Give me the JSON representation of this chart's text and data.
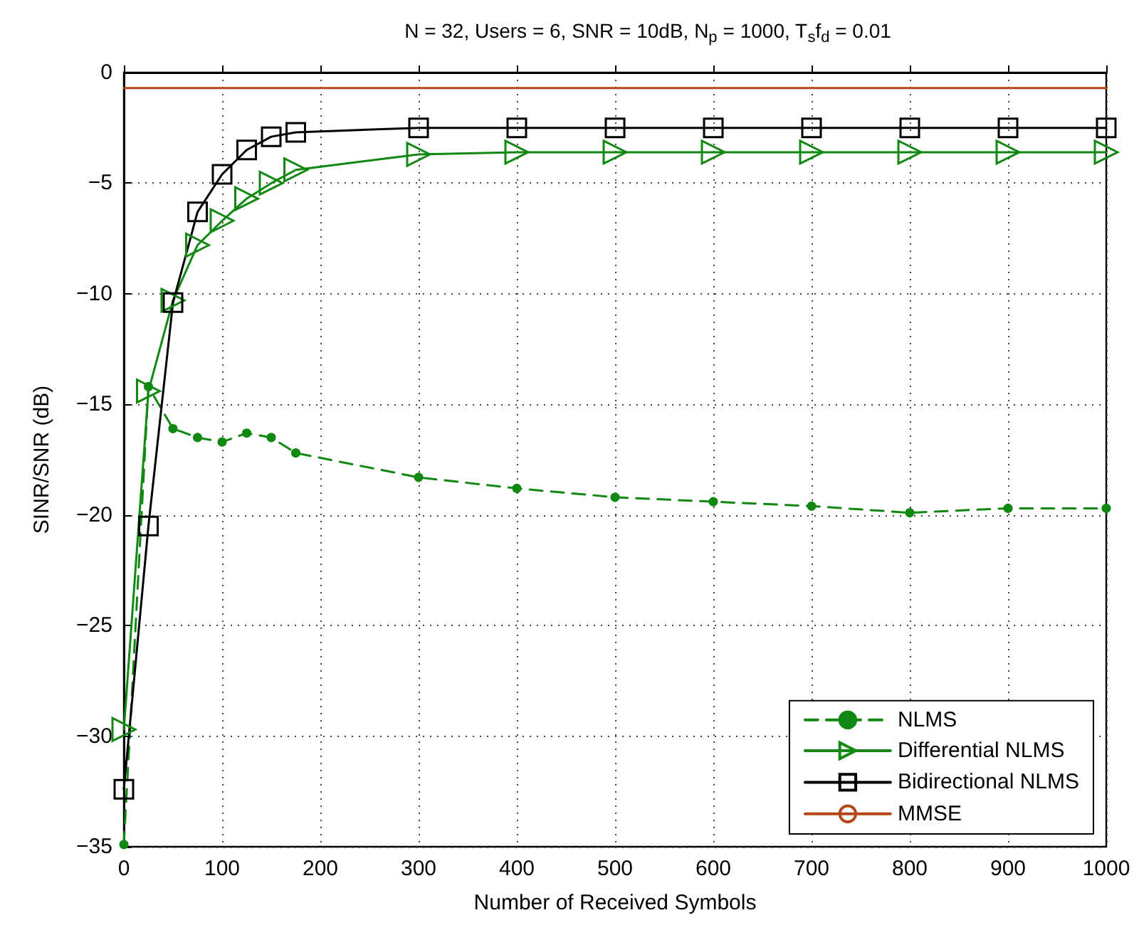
{
  "chart_data": {
    "type": "line",
    "title": "N = 32, Users = 6, SNR = 10dB, N$_{p}$ = 1000, T$_{s}$f$_{d}$ = 0.01",
    "xlabel": "Number of Received Symbols",
    "ylabel": "SINR/SNR (dB)",
    "xlim": [
      0,
      1000
    ],
    "xticks": [
      0,
      100,
      200,
      300,
      400,
      500,
      600,
      700,
      800,
      900,
      1000
    ],
    "ylim": [
      -35,
      0
    ],
    "yticks": [
      -35,
      -30,
      -25,
      -20,
      -15,
      -10,
      -5,
      0
    ],
    "grid": true,
    "legend": "bottom right",
    "series": [
      {
        "name": "NLMS",
        "color": "#118811",
        "marker": "circle",
        "line_style": "dashed",
        "x": [
          0,
          25,
          50,
          75,
          100,
          125,
          150,
          175,
          300,
          400,
          500,
          600,
          700,
          800,
          900,
          1000
        ],
        "values": [
          -34.9,
          -14.2,
          -16.1,
          -16.5,
          -16.7,
          -16.3,
          -16.5,
          -17.2,
          -18.3,
          -18.8,
          -19.2,
          -19.4,
          -19.6,
          -19.9,
          -19.7,
          -19.7
        ]
      },
      {
        "name": "Differential NLMS",
        "color": "#118811",
        "marker": "triangle",
        "line_style": "solid",
        "x": [
          0,
          25,
          50,
          75,
          100,
          125,
          150,
          175,
          300,
          400,
          500,
          600,
          700,
          800,
          900,
          1000
        ],
        "values": [
          -29.7,
          -14.4,
          -10.3,
          -7.8,
          -6.7,
          -5.7,
          -5.0,
          -4.4,
          -3.7,
          -3.6,
          -3.6,
          -3.6,
          -3.6,
          -3.6,
          -3.6,
          -3.6
        ]
      },
      {
        "name": "Bidirectional NLMS",
        "color": "#000000",
        "marker": "square",
        "line_style": "solid",
        "x": [
          0,
          25,
          50,
          75,
          100,
          125,
          150,
          175,
          300,
          400,
          500,
          600,
          700,
          800,
          900,
          1000
        ],
        "values": [
          -32.4,
          -20.5,
          -10.4,
          -6.3,
          -4.6,
          -3.5,
          -2.9,
          -2.7,
          -2.5,
          -2.5,
          -2.5,
          -2.5,
          -2.5,
          -2.5,
          -2.5,
          -2.5
        ]
      },
      {
        "name": "MMSE",
        "color": "#b5461a",
        "marker": "none",
        "line_style": "solid",
        "x": [
          0,
          1000
        ],
        "values": [
          -0.7,
          -0.7
        ]
      }
    ]
  }
}
